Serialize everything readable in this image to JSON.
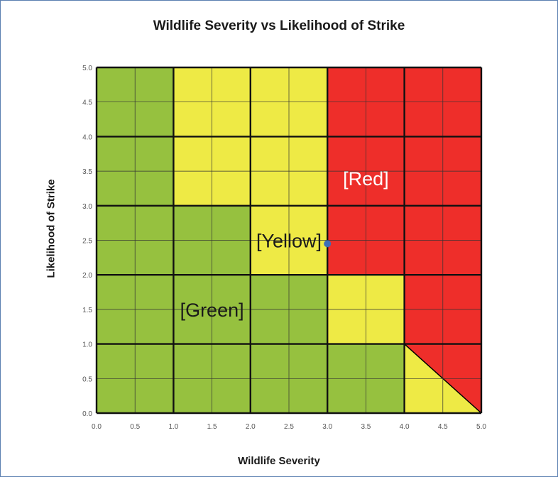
{
  "chart_data": {
    "type": "heatmap",
    "title": "Wildlife Severity vs Likelihood of Strike",
    "xlabel": "Wildlife Severity",
    "ylabel": "Likelihood of Strike",
    "xlim": [
      0,
      5
    ],
    "ylim": [
      0,
      5
    ],
    "x_ticks": [
      "0.0",
      "0.5",
      "1.0",
      "1.5",
      "2.0",
      "2.5",
      "3.0",
      "3.5",
      "4.0",
      "4.5",
      "5.0"
    ],
    "y_ticks": [
      "0.0",
      "0.5",
      "1.0",
      "1.5",
      "2.0",
      "2.5",
      "3.0",
      "3.5",
      "4.0",
      "4.5",
      "5.0"
    ],
    "grid": true,
    "colors": {
      "green": "#96c13f",
      "yellow": "#eeea45",
      "red": "#ee2e2a"
    },
    "cells": [
      [
        "green",
        "green",
        "green",
        "green",
        "split"
      ],
      [
        "green",
        "green",
        "green",
        "yellow",
        "red"
      ],
      [
        "green",
        "green",
        "yellow",
        "red",
        "red"
      ],
      [
        "green",
        "yellow",
        "yellow",
        "red",
        "red"
      ],
      [
        "green",
        "yellow",
        "yellow",
        "red",
        "red"
      ]
    ],
    "split_cell": {
      "lower_color": "yellow",
      "upper_color": "red"
    },
    "zone_labels": [
      {
        "text": "[Green]",
        "x": 1.5,
        "y": 1.5,
        "color": "#1a1a1a"
      },
      {
        "text": "[Yellow]",
        "x": 2.5,
        "y": 2.5,
        "color": "#1a1a1a"
      },
      {
        "text": "[Red]",
        "x": 3.5,
        "y": 3.4,
        "color": "#ffffff"
      }
    ],
    "points": [
      {
        "x": 3.0,
        "y": 2.45,
        "color": "#3d6eb7"
      }
    ]
  }
}
